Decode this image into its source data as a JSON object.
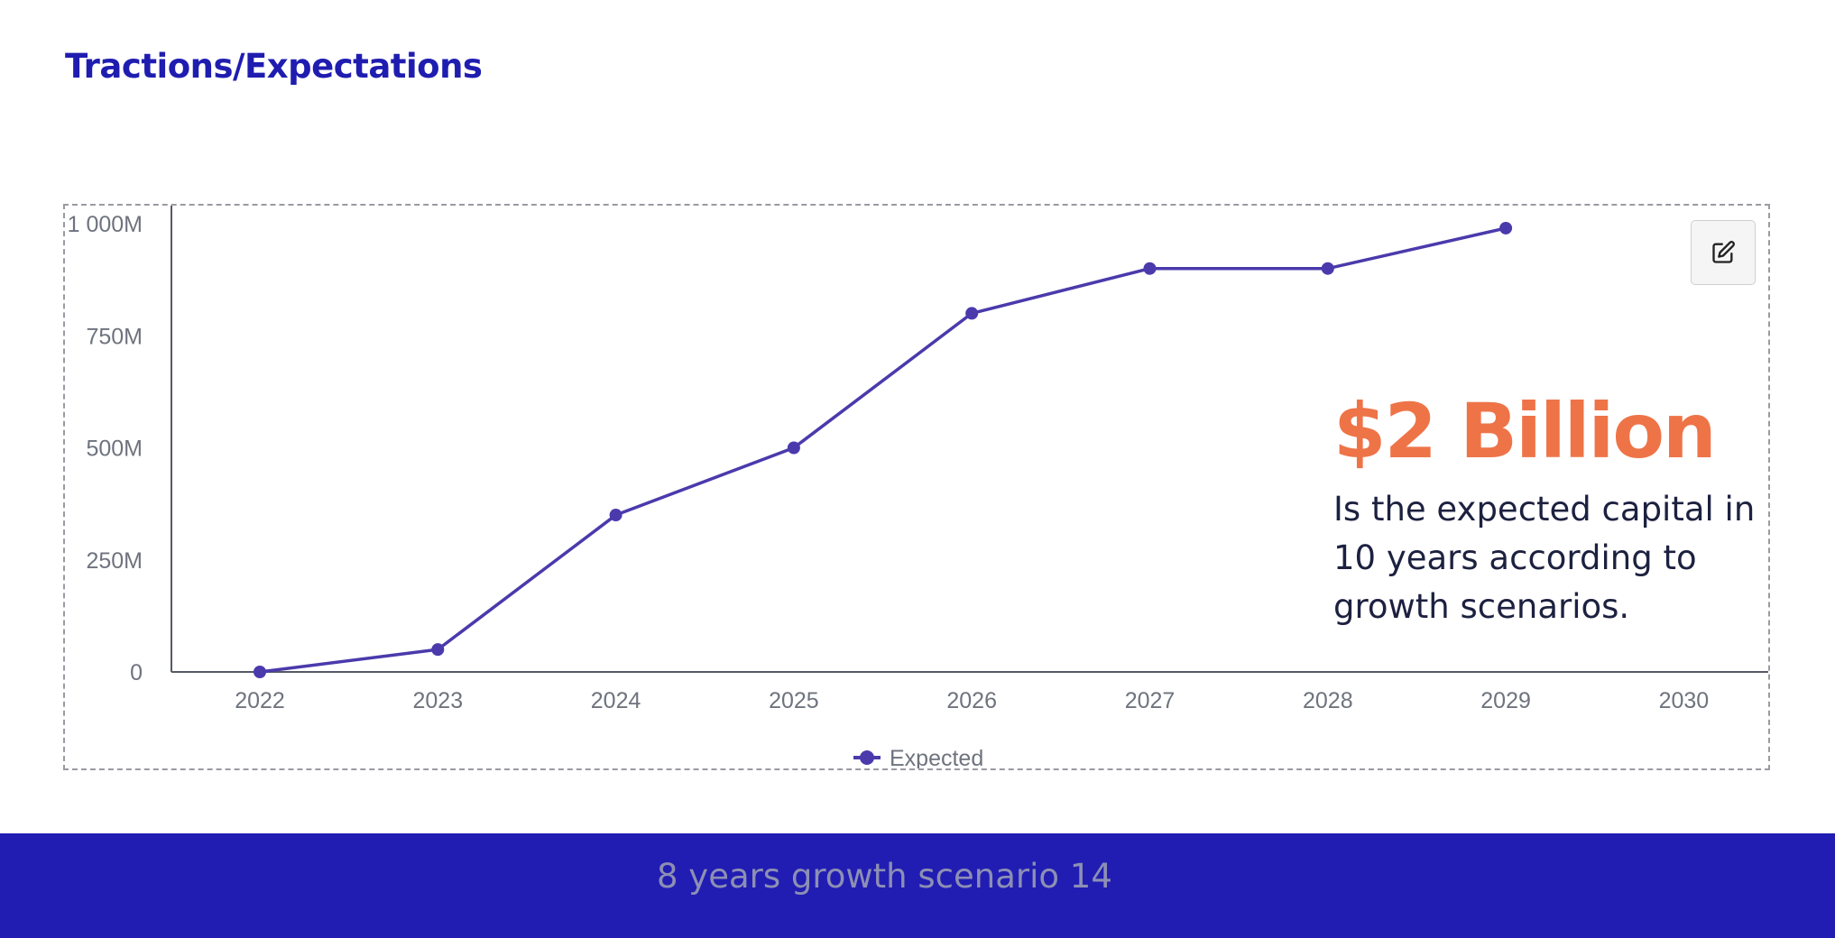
{
  "title": "Tractions/Expectations",
  "callout": {
    "headline": "$2 Billion",
    "text": "Is the expected capital in 10 years according to growth scenarios."
  },
  "footer": {
    "text": "8 years growth scenario 14"
  },
  "edit_button": {
    "icon": "edit-icon"
  },
  "colors": {
    "title": "#1f1db0",
    "series": "#4a3aac",
    "headline": "#ee7448",
    "footer_bg": "#211db2",
    "footer_text": "#8d8fb4"
  },
  "chart_data": {
    "type": "line",
    "x": [
      "2022",
      "2023",
      "2024",
      "2025",
      "2026",
      "2027",
      "2028",
      "2029",
      "2030"
    ],
    "series": [
      {
        "name": "Expected",
        "values": [
          0,
          50,
          350,
          500,
          800,
          900,
          900,
          990,
          null
        ]
      }
    ],
    "ylim": [
      0,
      1000
    ],
    "yticks": [
      0,
      250,
      500,
      750,
      1000
    ],
    "ytick_labels": [
      "0",
      "250M",
      "500M",
      "750M",
      "1 000M"
    ],
    "grid": false,
    "legend": "bottom-center",
    "xlabel": "",
    "ylabel": ""
  }
}
